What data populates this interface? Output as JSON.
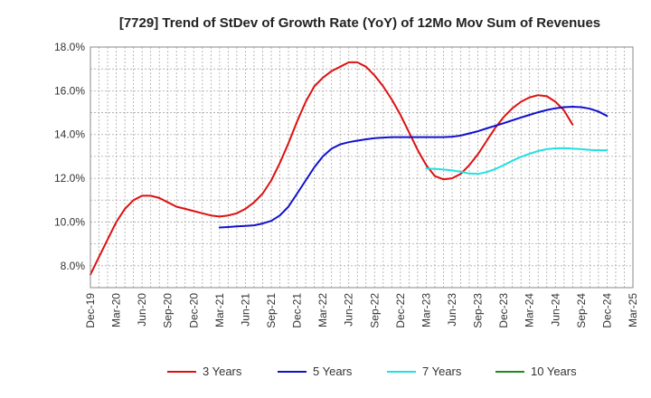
{
  "chart_data": {
    "type": "line",
    "title": "[7729]  Trend of StDev of Growth Rate (YoY) of 12Mo Mov Sum of Revenues",
    "xlabel": "",
    "ylabel": "",
    "ylim": [
      7.0,
      18.0
    ],
    "y_ticks": [
      8.0,
      10.0,
      12.0,
      14.0,
      16.0,
      18.0
    ],
    "y_tick_labels": [
      "8.0%",
      "10.0%",
      "12.0%",
      "14.0%",
      "16.0%",
      "18.0%"
    ],
    "x_tick_labels": [
      "Dec-19",
      "Mar-20",
      "Jun-20",
      "Sep-20",
      "Dec-20",
      "Mar-21",
      "Jun-21",
      "Sep-21",
      "Dec-21",
      "Mar-22",
      "Jun-22",
      "Sep-22",
      "Dec-22",
      "Mar-23",
      "Jun-23",
      "Sep-23",
      "Dec-23",
      "Mar-24",
      "Jun-24",
      "Sep-24",
      "Dec-24",
      "Mar-25"
    ],
    "grid": true,
    "legend_position": "bottom",
    "series": [
      {
        "name": "3 Years",
        "color": "#dd1111",
        "start_month": 0,
        "values": [
          7.6,
          8.4,
          9.2,
          10.0,
          10.6,
          11.0,
          11.2,
          11.2,
          11.1,
          10.9,
          10.7,
          10.6,
          10.5,
          10.4,
          10.3,
          10.25,
          10.3,
          10.4,
          10.6,
          10.9,
          11.3,
          11.9,
          12.7,
          13.6,
          14.6,
          15.5,
          16.2,
          16.6,
          16.9,
          17.1,
          17.3,
          17.3,
          17.1,
          16.7,
          16.2,
          15.6,
          14.9,
          14.1,
          13.3,
          12.6,
          12.1,
          11.95,
          12.0,
          12.2,
          12.6,
          13.1,
          13.7,
          14.3,
          14.8,
          15.2,
          15.5,
          15.7,
          15.8,
          15.75,
          15.5,
          15.1,
          14.45
        ]
      },
      {
        "name": "5 Years",
        "color": "#1111cc",
        "start_month": 15,
        "values": [
          9.75,
          9.77,
          9.8,
          9.82,
          9.85,
          9.93,
          10.05,
          10.3,
          10.7,
          11.3,
          11.9,
          12.5,
          13.0,
          13.35,
          13.55,
          13.65,
          13.72,
          13.78,
          13.83,
          13.86,
          13.88,
          13.88,
          13.88,
          13.88,
          13.88,
          13.88,
          13.88,
          13.9,
          13.95,
          14.05,
          14.15,
          14.28,
          14.4,
          14.52,
          14.65,
          14.78,
          14.9,
          15.02,
          15.12,
          15.2,
          15.25,
          15.27,
          15.25,
          15.18,
          15.05,
          14.85
        ]
      },
      {
        "name": "7 Years",
        "color": "#22e0e0",
        "start_month": 39,
        "values": [
          12.45,
          12.43,
          12.4,
          12.36,
          12.3,
          12.22,
          12.2,
          12.28,
          12.42,
          12.6,
          12.8,
          12.98,
          13.12,
          13.25,
          13.33,
          13.37,
          13.38,
          13.36,
          13.33,
          13.3,
          13.28,
          13.28
        ]
      },
      {
        "name": "10 Years",
        "color": "#228822",
        "start_month": 0,
        "values": []
      }
    ]
  }
}
